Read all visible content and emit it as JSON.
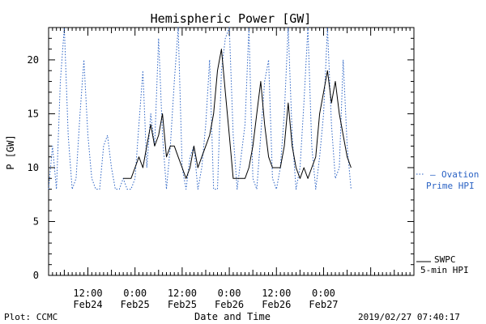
{
  "chart_data": {
    "type": "line",
    "title": "Hemispheric Power [GW]",
    "xlabel": "Date and Time",
    "ylabel": "P [GW]",
    "ylim": [
      0,
      23
    ],
    "y_ticks": [
      0,
      5,
      10,
      15,
      20
    ],
    "x_range": [
      "2019-02-24T02:00",
      "2019-02-27T23:00"
    ],
    "x_ticks": [
      {
        "time": "2019-02-24T12:00",
        "time_label": "12:00",
        "date_label": "Feb24"
      },
      {
        "time": "2019-02-25T00:00",
        "time_label": "0:00",
        "date_label": "Feb25"
      },
      {
        "time": "2019-02-25T12:00",
        "time_label": "12:00",
        "date_label": "Feb25"
      },
      {
        "time": "2019-02-26T00:00",
        "time_label": "0:00",
        "date_label": "Feb26"
      },
      {
        "time": "2019-02-26T12:00",
        "time_label": "12:00",
        "date_label": "Feb26"
      },
      {
        "time": "2019-02-27T00:00",
        "time_label": "0:00",
        "date_label": "Feb27"
      }
    ],
    "grid": false,
    "legend_position": "right",
    "series": [
      {
        "name": "Ovation Prime HPI",
        "legend_line1": "Ovation",
        "legend_line2": "Prime HPI",
        "color": "#2a62c4",
        "style": "dotted",
        "x": [
          "2019-02-24T02:00",
          "2019-02-24T03:00",
          "2019-02-24T04:00",
          "2019-02-24T05:00",
          "2019-02-24T06:00",
          "2019-02-24T07:00",
          "2019-02-24T08:00",
          "2019-02-24T09:00",
          "2019-02-24T10:00",
          "2019-02-24T11:00",
          "2019-02-24T12:00",
          "2019-02-24T13:00",
          "2019-02-24T14:00",
          "2019-02-24T15:00",
          "2019-02-24T16:00",
          "2019-02-24T17:00",
          "2019-02-24T18:00",
          "2019-02-24T19:00",
          "2019-02-24T20:00",
          "2019-02-24T21:00",
          "2019-02-24T22:00",
          "2019-02-24T23:00",
          "2019-02-25T00:00",
          "2019-02-25T01:00",
          "2019-02-25T02:00",
          "2019-02-25T03:00",
          "2019-02-25T04:00",
          "2019-02-25T05:00",
          "2019-02-25T06:00",
          "2019-02-25T07:00",
          "2019-02-25T08:00",
          "2019-02-25T09:00",
          "2019-02-25T10:00",
          "2019-02-25T11:00",
          "2019-02-25T12:00",
          "2019-02-25T13:00",
          "2019-02-25T14:00",
          "2019-02-25T15:00",
          "2019-02-25T16:00",
          "2019-02-25T17:00",
          "2019-02-25T18:00",
          "2019-02-25T19:00",
          "2019-02-25T20:00",
          "2019-02-25T21:00",
          "2019-02-25T22:00",
          "2019-02-25T23:00",
          "2019-02-26T00:00",
          "2019-02-26T01:00",
          "2019-02-26T02:00",
          "2019-02-26T03:00",
          "2019-02-26T04:00",
          "2019-02-26T05:00",
          "2019-02-26T06:00",
          "2019-02-26T07:00",
          "2019-02-26T08:00",
          "2019-02-26T09:00",
          "2019-02-26T10:00",
          "2019-02-26T11:00",
          "2019-02-26T12:00",
          "2019-02-26T13:00",
          "2019-02-26T14:00",
          "2019-02-26T15:00",
          "2019-02-26T16:00",
          "2019-02-26T17:00",
          "2019-02-26T18:00",
          "2019-02-26T19:00",
          "2019-02-26T20:00",
          "2019-02-26T21:00",
          "2019-02-26T22:00",
          "2019-02-26T23:00",
          "2019-02-27T00:00",
          "2019-02-27T01:00",
          "2019-02-27T02:00",
          "2019-02-27T03:00",
          "2019-02-27T04:00",
          "2019-02-27T05:00",
          "2019-02-27T06:00",
          "2019-02-27T07:00"
        ],
        "y": [
          8,
          12,
          8,
          18,
          23,
          13,
          8,
          9,
          15,
          20,
          13,
          9,
          8,
          8,
          12,
          13,
          10,
          8,
          8,
          9,
          8,
          8,
          9,
          14,
          19,
          10,
          15,
          12,
          22,
          13,
          8,
          12,
          18,
          23,
          10,
          8,
          11,
          12,
          8,
          10,
          14,
          20,
          8,
          8,
          19,
          22,
          23,
          13,
          8,
          11,
          14,
          23,
          9,
          8,
          13,
          18,
          20,
          9,
          8,
          10,
          15,
          23,
          13,
          8,
          10,
          16,
          23,
          12,
          8,
          11,
          15,
          23,
          14,
          9,
          10,
          20,
          12,
          8
        ]
      },
      {
        "name": "SWPC 5-min HPI",
        "legend_line1": "SWPC",
        "legend_line2": "5-min HPI",
        "color": "#000000",
        "style": "solid",
        "x": [
          "2019-02-24T21:00",
          "2019-02-24T23:00",
          "2019-02-25T00:00",
          "2019-02-25T01:00",
          "2019-02-25T02:00",
          "2019-02-25T03:00",
          "2019-02-25T04:00",
          "2019-02-25T05:00",
          "2019-02-25T06:00",
          "2019-02-25T07:00",
          "2019-02-25T08:00",
          "2019-02-25T09:00",
          "2019-02-25T10:00",
          "2019-02-25T11:00",
          "2019-02-25T12:00",
          "2019-02-25T13:00",
          "2019-02-25T14:00",
          "2019-02-25T15:00",
          "2019-02-25T16:00",
          "2019-02-25T17:00",
          "2019-02-25T18:00",
          "2019-02-25T19:00",
          "2019-02-25T20:00",
          "2019-02-25T21:00",
          "2019-02-25T22:00",
          "2019-02-25T23:00",
          "2019-02-26T00:00",
          "2019-02-26T01:00",
          "2019-02-26T02:00",
          "2019-02-26T03:00",
          "2019-02-26T04:00",
          "2019-02-26T05:00",
          "2019-02-26T06:00",
          "2019-02-26T07:00",
          "2019-02-26T08:00",
          "2019-02-26T09:00",
          "2019-02-26T10:00",
          "2019-02-26T11:00",
          "2019-02-26T12:00",
          "2019-02-26T13:00",
          "2019-02-26T14:00",
          "2019-02-26T15:00",
          "2019-02-26T16:00",
          "2019-02-26T17:00",
          "2019-02-26T18:00",
          "2019-02-26T19:00",
          "2019-02-26T20:00",
          "2019-02-26T21:00",
          "2019-02-26T22:00",
          "2019-02-26T23:00",
          "2019-02-27T00:00",
          "2019-02-27T01:00",
          "2019-02-27T02:00",
          "2019-02-27T03:00",
          "2019-02-27T04:00",
          "2019-02-27T05:00",
          "2019-02-27T06:00",
          "2019-02-27T07:00"
        ],
        "y": [
          9,
          9,
          10,
          11,
          10,
          12,
          14,
          12,
          13,
          15,
          11,
          12,
          12,
          11,
          10,
          9,
          10,
          12,
          10,
          11,
          12,
          13,
          15,
          19,
          21,
          17,
          13,
          9,
          9,
          9,
          9,
          10,
          12,
          15,
          18,
          14,
          11,
          10,
          10,
          10,
          12,
          16,
          12,
          10,
          9,
          10,
          9,
          10,
          11,
          15,
          17,
          19,
          16,
          18,
          15,
          13,
          11,
          10
        ]
      }
    ]
  },
  "footer": {
    "left": "Plot: CCMC",
    "right": "2019/02/27 07:40:17"
  }
}
